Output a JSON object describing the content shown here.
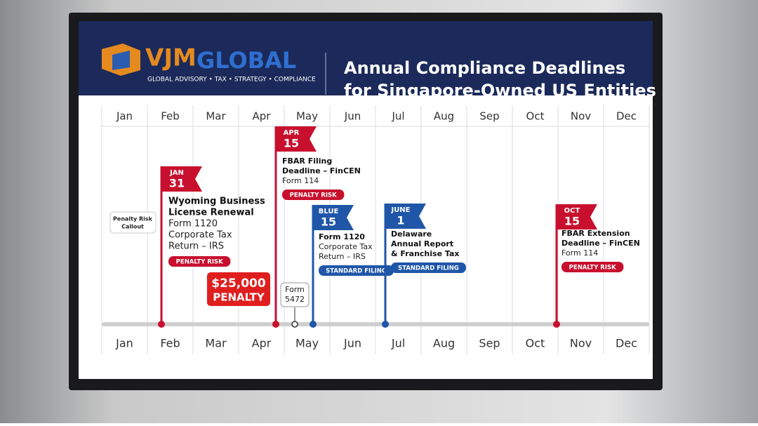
{
  "header": {
    "logo_left": "VJM",
    "logo_right": "GLOBAL",
    "tagline": "GLOBAL ADVISORY • TAX • STRATEGY • COMPLIANCE",
    "title_lines": [
      "Annual Compliance Deadlines",
      "for Singapore-Owned US Entities"
    ]
  },
  "months": [
    "Jan",
    "Feb",
    "Mar",
    "Apr",
    "May",
    "Jun",
    "Jul",
    "Aug",
    "Sep",
    "Oct",
    "Nov",
    "Dec"
  ],
  "events": [
    {
      "flag_month": "JAN",
      "flag_day": "31",
      "title_lines": [
        "Wyoming Business",
        "License Renewal"
      ],
      "detail_lines": [
        "Form 1120",
        "Corporate Tax",
        "Return – IRS"
      ],
      "badge": "PENALTY RISK",
      "kind": "red"
    },
    {
      "flag_month": "APR",
      "flag_day": "15",
      "title_lines": [
        "FBAR Filing",
        "Deadline – FinCEN"
      ],
      "detail_lines": [
        "Form 114"
      ],
      "badge": "PENALTY RISK",
      "kind": "red"
    },
    {
      "flag_month": "BLUE",
      "flag_day": "15",
      "title_lines": [
        "Form 1120"
      ],
      "detail_lines": [
        "Corporate Tax",
        "Return – IRS"
      ],
      "badge": "STANDARD FILING",
      "kind": "blue"
    },
    {
      "flag_month": "JUNE",
      "flag_day": "1",
      "title_lines": [
        "Delaware",
        "Annual Report",
        "& Franchise Tax"
      ],
      "detail_lines": [],
      "badge": "STANDARD FILING",
      "kind": "blue"
    },
    {
      "flag_month": "OCT",
      "flag_day": "15",
      "title_lines": [
        "FBAR Extension",
        "Deadline – FinCEN"
      ],
      "detail_lines": [
        "Form 114"
      ],
      "badge": "PENALTY RISK",
      "kind": "red"
    }
  ],
  "callouts": {
    "penalty_risk": [
      "Penalty Risk",
      "Callout"
    ],
    "penalty_amount": [
      "$25,000",
      "PENALTY"
    ],
    "form": [
      "Form",
      "5472"
    ]
  }
}
